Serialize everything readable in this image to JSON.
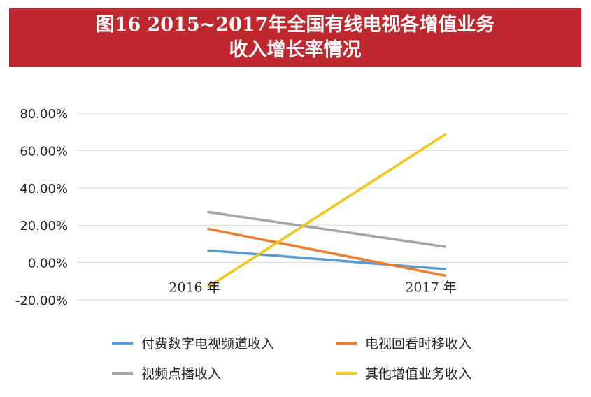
{
  "title_line1": "图16  2015~2017年全国有线电视各增值业务",
  "title_line2": "收入增长率情况",
  "colors": {
    "banner": "#c0282f",
    "grid": "#d9d9d9",
    "axis_text": "#222222"
  },
  "chart_data": {
    "type": "line",
    "categories": [
      "2016 年",
      "2017 年"
    ],
    "y_tick_labels": [
      "80.00%",
      "60.00%",
      "40.00%",
      "20.00%",
      "0.00%",
      "-20.00%"
    ],
    "ylim": [
      -20,
      80
    ],
    "y_unit": "%",
    "grid": true,
    "legend_position": "bottom",
    "series": [
      {
        "name": "付费数字电视频道收入",
        "color": "#5b9bd5",
        "values": [
          6.5,
          -3.5
        ]
      },
      {
        "name": "电视回看时移收入",
        "color": "#ed7d31",
        "values": [
          18.0,
          -7.0
        ]
      },
      {
        "name": "视频点播收入",
        "color": "#a5a5a5",
        "values": [
          27.0,
          8.5
        ]
      },
      {
        "name": "其他增值业务收入",
        "color": "#f2c619",
        "values": [
          -13.0,
          68.5
        ]
      }
    ]
  }
}
